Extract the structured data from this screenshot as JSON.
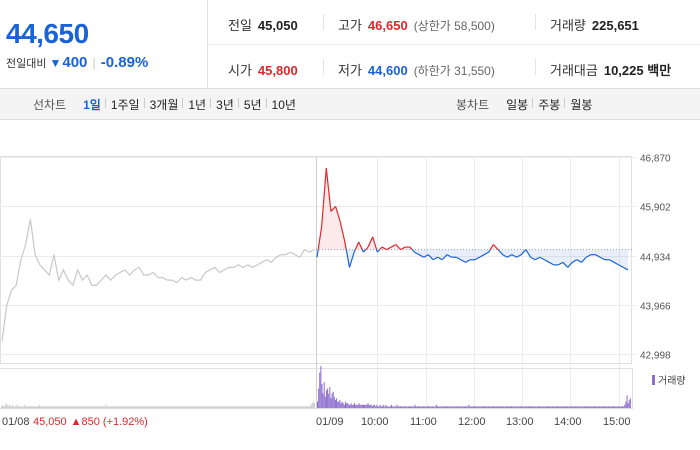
{
  "price": {
    "current": "44,650",
    "change_label": "전일대비",
    "change_icon": "triangle-down-icon",
    "change_amount": "400",
    "change_percent": "-0.89%",
    "down_color": "#1a62d8",
    "up_color": "#e0262b"
  },
  "info": {
    "prev_close": {
      "label": "전일",
      "value": "45,050"
    },
    "high": {
      "label": "고가",
      "value": "46,650",
      "sub": "(상한가 58,500)"
    },
    "volume": {
      "label": "거래량",
      "value": "225,651"
    },
    "open": {
      "label": "시가",
      "value": "45,800"
    },
    "low": {
      "label": "저가",
      "value": "44,600",
      "sub": "(하한가 31,550)"
    },
    "trade_value": {
      "label": "거래대금",
      "value": "10,225",
      "unit": "백만"
    }
  },
  "line_chart_tabs": {
    "title": "선차트",
    "items": [
      "1일",
      "1주일",
      "3개월",
      "1년",
      "3년",
      "5년",
      "10년"
    ],
    "active": "1일"
  },
  "candle_chart_tabs": {
    "title": "봉차트",
    "items": [
      "일봉",
      "주봉",
      "월봉"
    ]
  },
  "chart_data": {
    "type": "line",
    "prev_date": "01/08",
    "prev_summary": {
      "price": "45,050",
      "change_icon": "triangle-up-icon",
      "change": "850",
      "change_pct": "(+1.92%)"
    },
    "x_labels": [
      "01/09",
      "10:00",
      "11:00",
      "12:00",
      "13:00",
      "14:00",
      "15:00"
    ],
    "y_ticks": [
      "46,870",
      "45,902",
      "44,934",
      "43,966",
      "42,998"
    ],
    "ylim": [
      42998,
      46870
    ],
    "reference_price": 45050,
    "volume_legend": "거래량",
    "grid": true,
    "prev_day_series": [
      43250,
      43950,
      44250,
      44350,
      44850,
      45150,
      45650,
      44950,
      44750,
      44650,
      44550,
      44950,
      44450,
      44650,
      44450,
      44350,
      44650,
      44450,
      44550,
      44350,
      44350,
      44450,
      44550,
      44450,
      44550,
      44600,
      44650,
      44550,
      44650,
      44700,
      44550,
      44550,
      44600,
      44500,
      44500,
      44450,
      44450,
      44400,
      44500,
      44450,
      44500,
      44450,
      44450,
      44600,
      44650,
      44700,
      44600,
      44650,
      44700,
      44700,
      44750,
      44700,
      44750,
      44700,
      44750,
      44800,
      44850,
      44800,
      44900,
      44950,
      44950,
      45000,
      44950,
      44900,
      45050,
      45000,
      45050
    ],
    "today_series": [
      44900,
      45500,
      46650,
      45800,
      45900,
      45600,
      45200,
      44700,
      45000,
      45200,
      45000,
      45100,
      45300,
      45000,
      45100,
      45050,
      45100,
      45150,
      45050,
      45100,
      45100,
      45000,
      44950,
      44900,
      44950,
      44850,
      44900,
      44850,
      44950,
      44900,
      44900,
      44850,
      44800,
      44850,
      44850,
      44900,
      44950,
      45000,
      45150,
      45050,
      44950,
      44900,
      44950,
      44900,
      44950,
      45050,
      44900,
      44850,
      44900,
      44850,
      44800,
      44750,
      44750,
      44800,
      44700,
      44800,
      44850,
      44800,
      44900,
      44950,
      44950,
      44900,
      44850,
      44850,
      44800,
      44750,
      44700,
      44650
    ],
    "prev_day_volume": [
      1,
      2,
      1,
      1,
      3,
      2,
      1,
      2,
      1,
      1,
      2,
      1,
      1,
      1,
      2,
      1,
      1,
      1,
      1,
      1,
      1,
      2,
      1,
      1,
      1,
      1,
      1,
      1,
      1,
      1,
      1,
      1,
      1,
      1,
      2,
      1,
      1,
      1,
      1,
      1,
      1,
      1,
      1,
      1,
      1,
      1,
      1,
      1,
      1,
      1,
      1,
      1,
      1,
      1,
      1,
      1,
      1,
      1,
      1,
      1,
      1,
      1,
      1,
      1,
      1,
      1,
      1,
      1,
      1,
      1,
      1,
      1,
      1,
      1,
      1,
      1,
      1,
      1,
      1,
      1,
      1,
      1,
      1,
      1,
      1,
      1,
      1,
      1,
      1,
      1,
      1,
      1,
      1,
      2,
      1,
      1,
      1,
      1,
      1,
      1,
      1,
      1,
      1,
      1,
      1,
      1,
      1,
      1,
      1,
      1,
      1,
      1,
      1,
      1,
      1,
      1,
      1,
      1,
      1,
      1,
      1,
      1,
      1,
      1,
      1,
      1,
      1,
      1,
      1,
      1,
      1,
      1,
      1,
      1,
      1,
      1,
      1,
      1,
      1,
      1,
      1,
      1,
      1,
      1,
      1,
      1,
      1,
      1,
      1,
      1,
      1,
      1,
      1,
      1,
      1,
      1,
      1,
      1,
      1,
      1,
      1,
      1,
      1,
      1,
      1,
      1,
      1,
      1,
      1,
      1,
      1,
      1,
      1,
      1,
      1,
      1,
      1,
      1,
      1,
      1,
      1,
      1,
      1,
      1,
      1,
      1,
      1,
      1,
      1,
      1,
      1,
      1,
      1,
      1,
      1,
      1,
      1,
      1,
      1,
      1,
      1,
      1,
      1,
      1,
      1,
      1,
      1,
      1,
      1,
      1,
      1,
      1,
      1,
      1,
      1,
      1,
      1,
      1,
      1,
      1,
      1,
      1,
      1,
      1,
      1,
      1,
      1,
      1,
      1,
      1,
      1,
      1,
      1,
      1,
      1,
      1,
      1,
      1,
      1,
      1,
      1,
      1,
      1,
      1,
      1,
      1,
      1,
      1,
      1,
      1,
      1,
      1,
      1,
      1,
      1,
      1,
      1,
      1,
      1,
      1,
      1,
      1,
      1,
      1,
      1,
      1,
      1,
      1,
      1,
      1,
      1,
      1,
      1,
      1,
      1,
      1,
      2,
      3,
      4,
      3
    ],
    "today_volume": [
      4,
      12,
      22,
      26,
      15,
      9,
      16,
      7,
      11,
      12,
      9,
      13,
      6,
      9,
      10,
      7,
      5,
      6,
      4,
      4,
      5,
      3,
      4,
      3,
      2,
      4,
      3,
      3,
      2,
      2,
      3,
      2,
      2,
      3,
      2,
      2,
      2,
      3,
      2,
      2,
      2,
      2,
      2,
      2,
      2,
      3,
      2,
      2,
      2,
      1,
      2,
      2,
      1,
      2,
      1,
      1,
      2,
      1,
      1,
      2,
      1,
      2,
      1,
      1,
      1,
      1,
      2,
      1,
      1,
      1,
      1,
      2,
      1,
      1,
      1,
      1,
      1,
      1,
      1,
      1,
      1,
      1,
      1,
      1,
      1,
      1,
      1,
      2,
      1,
      1,
      1,
      1,
      1,
      1,
      1,
      1,
      1,
      1,
      1,
      1,
      1,
      1,
      1,
      1,
      1,
      1,
      2,
      1,
      1,
      1,
      1,
      1,
      1,
      1,
      1,
      1,
      1,
      1,
      1,
      1,
      1,
      1,
      1,
      1,
      1,
      1,
      1,
      1,
      1,
      1,
      1,
      1,
      1,
      1,
      1,
      2,
      1,
      1,
      1,
      1,
      1,
      1,
      1,
      1,
      1,
      1,
      1,
      1,
      1,
      1,
      1,
      1,
      1,
      1,
      1,
      1,
      1,
      1,
      1,
      1,
      1,
      1,
      1,
      1,
      1,
      1,
      1,
      1,
      1,
      1,
      1,
      1,
      1,
      1,
      1,
      1,
      1,
      1,
      1,
      1,
      1,
      1,
      1,
      1,
      1,
      1,
      1,
      1,
      1,
      1,
      1,
      1,
      1,
      1,
      1,
      1,
      1,
      1,
      1,
      1,
      1,
      1,
      1,
      1,
      1,
      1,
      1,
      1,
      1,
      1,
      1,
      1,
      1,
      1,
      1,
      1,
      1,
      1,
      1,
      1,
      1,
      1,
      1,
      1,
      1,
      1,
      1,
      1,
      1,
      1,
      1,
      1,
      1,
      1,
      1,
      1,
      1,
      1,
      1,
      1,
      1,
      1,
      1,
      1,
      1,
      1,
      1,
      1,
      1,
      1,
      1,
      1,
      1,
      1,
      1,
      1,
      1,
      1,
      1,
      1,
      1,
      1,
      1,
      1,
      1,
      1,
      1,
      1,
      1,
      1,
      1,
      1,
      1,
      1,
      2,
      4,
      8,
      3,
      5,
      6
    ],
    "colors": {
      "prev_line": "#c8c8c8",
      "above_ref": "#e0262b",
      "below_ref": "#1a62d8",
      "volume": "#8e6fd0",
      "volume_prev": "#c8c8c8"
    }
  }
}
